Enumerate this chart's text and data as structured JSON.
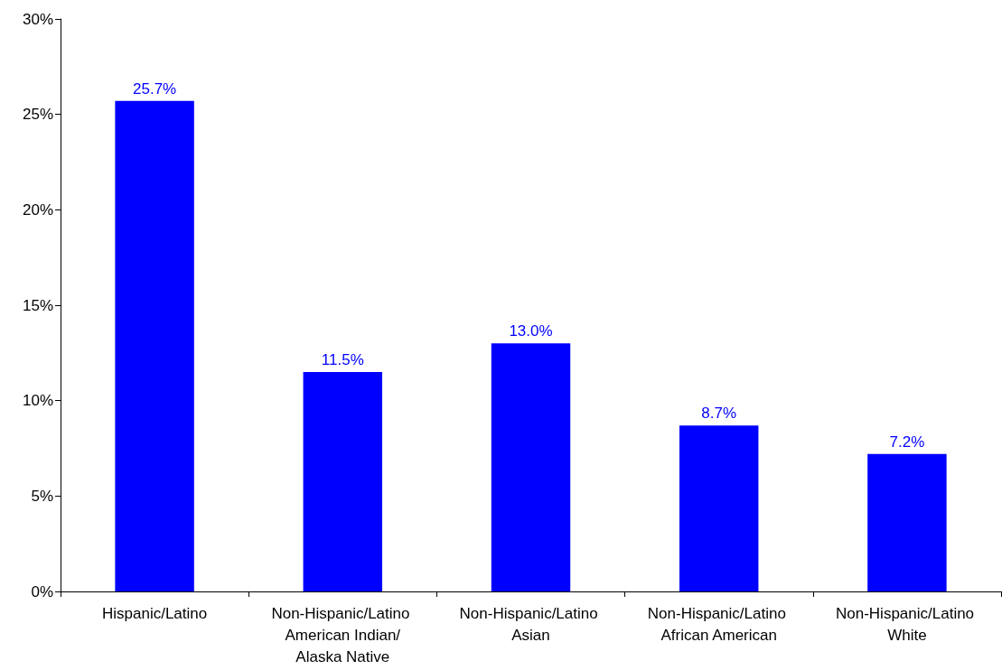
{
  "chart_data": {
    "type": "bar",
    "categories": [
      "Hispanic/Latino",
      "Non-Hispanic/Latino American Indian/Alaska Native",
      "Non-Hispanic/Latino Asian",
      "Non-Hispanic/Latino African American",
      "Non-Hispanic/Latino White"
    ],
    "values": [
      25.7,
      11.5,
      13.0,
      8.7,
      7.2
    ],
    "value_labels": [
      "25.7%",
      "11.5%",
      "13.0%",
      "8.7%",
      "7.2%"
    ],
    "color": "#0000ff",
    "ylim": [
      0,
      30
    ],
    "yticks": [
      {
        "value": 0,
        "label": "0%"
      },
      {
        "value": 5,
        "label": "5%"
      },
      {
        "value": 10,
        "label": "10%"
      },
      {
        "value": 15,
        "label": "15%"
      },
      {
        "value": 20,
        "label": "20%"
      },
      {
        "value": 25,
        "label": "25%"
      },
      {
        "value": 30,
        "label": "30%"
      }
    ],
    "grid": false
  }
}
